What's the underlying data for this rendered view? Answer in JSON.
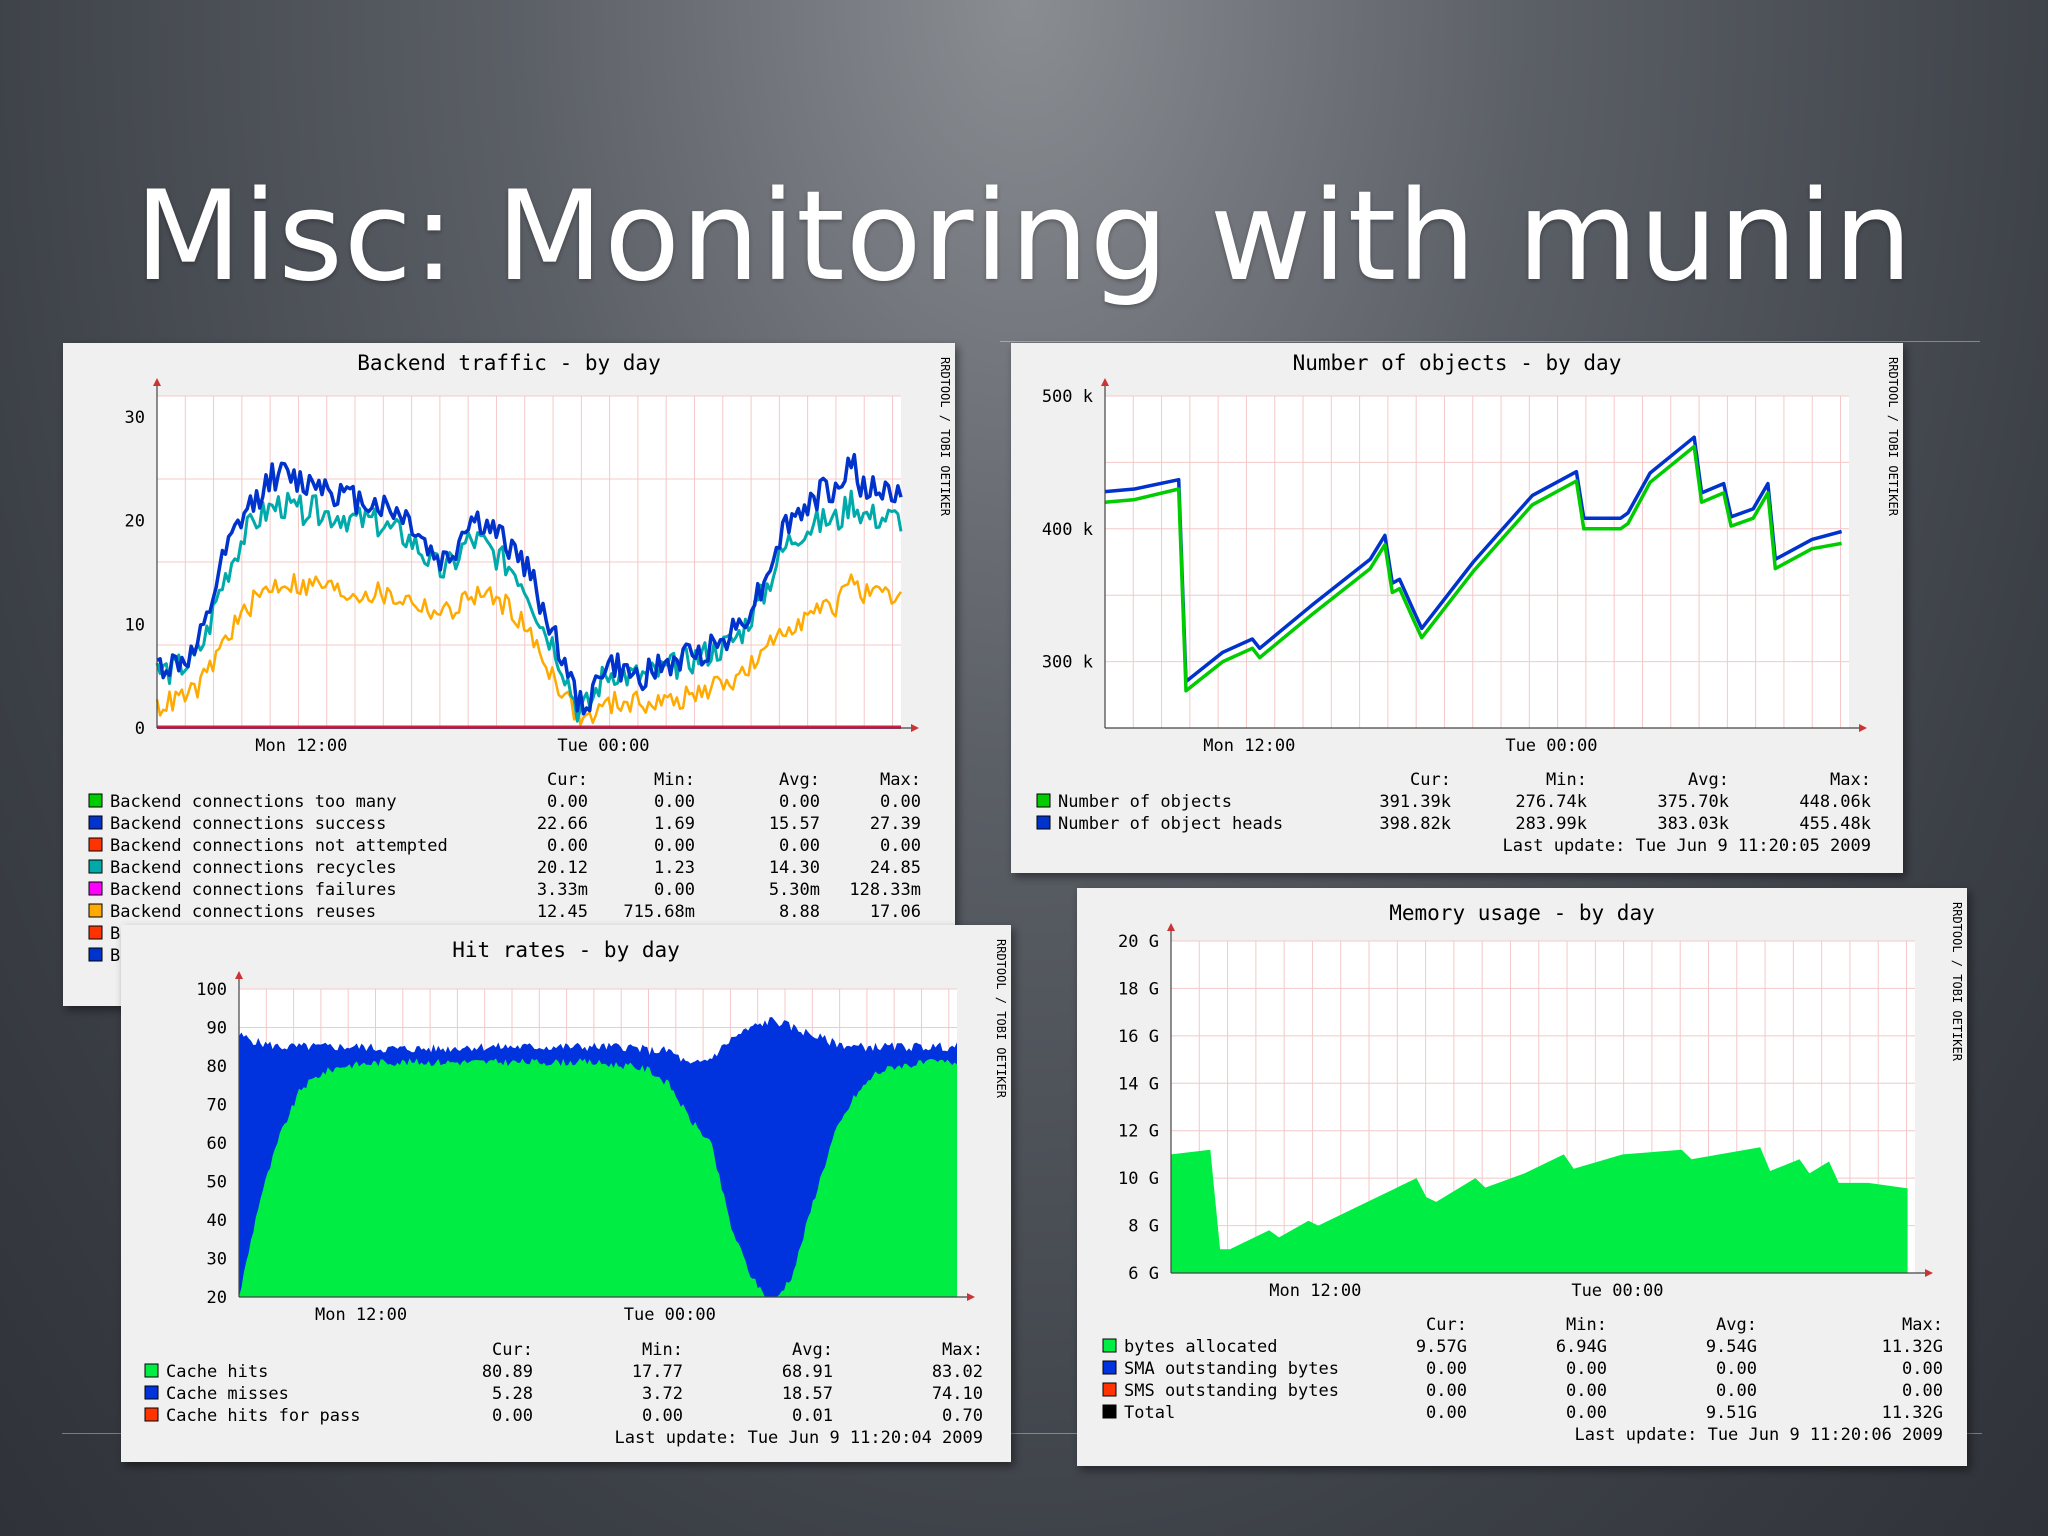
{
  "slide": {
    "title": "Misc: Monitoring with munin"
  },
  "watermark": "RRDTOOL / TOBI OETIKER",
  "chart_data": [
    {
      "id": "backend",
      "type": "line",
      "title": "Backend traffic - by day",
      "yticks": [
        "0",
        "10",
        "20",
        "30"
      ],
      "ylim": [
        0,
        32
      ],
      "x_tick_labels": [
        "Mon 12:00",
        "Tue 00:00"
      ],
      "legend_headers": [
        "Cur:",
        "Min:",
        "Avg:",
        "Max:"
      ],
      "series": [
        {
          "name": "Backend connections too many",
          "color": "#00cc00",
          "stats": [
            "0.00",
            "0.00",
            "0.00",
            "0.00"
          ],
          "values": [
            0,
            0,
            0,
            0,
            0,
            0,
            0,
            0,
            0,
            0,
            0,
            0,
            0,
            0,
            0,
            0,
            0,
            0,
            0,
            0,
            0,
            0,
            0,
            0,
            0,
            0,
            0,
            0,
            0,
            0,
            0,
            0,
            0,
            0,
            0,
            0,
            0,
            0,
            0,
            0,
            0,
            0,
            0,
            0,
            0,
            0,
            0,
            0,
            0,
            0,
            0,
            0,
            0,
            0,
            0,
            0,
            0,
            0,
            0,
            0,
            0
          ]
        },
        {
          "name": "Backend connections success",
          "color": "#0033cc",
          "stats": [
            "22.66",
            "1.69",
            "15.57",
            "27.39"
          ],
          "values": [
            6,
            6,
            6.5,
            7,
            10,
            15,
            18,
            20.5,
            22,
            24,
            24.5,
            24,
            23.5,
            24,
            23,
            22.5,
            22,
            22,
            21.5,
            21,
            20.5,
            19,
            17,
            16,
            17,
            20,
            20,
            19,
            18,
            17,
            15,
            12,
            9,
            6,
            2,
            3,
            6,
            6,
            5,
            5,
            5.5,
            6,
            6.5,
            7,
            7.5,
            8,
            9,
            10,
            12,
            14,
            18,
            20,
            21,
            22,
            23,
            23,
            26,
            22.8,
            23,
            22.7,
            22.66
          ]
        },
        {
          "name": "Backend connections not attempted",
          "color": "#ff3300",
          "stats": [
            "0.00",
            "0.00",
            "0.00",
            "0.00"
          ],
          "values": [
            0,
            0,
            0,
            0,
            0,
            0,
            0,
            0,
            0,
            0,
            0,
            0,
            0,
            0,
            0,
            0,
            0,
            0,
            0,
            0,
            0,
            0,
            0,
            0,
            0,
            0,
            0,
            0,
            0,
            0,
            0,
            0,
            0,
            0,
            0,
            0,
            0,
            0,
            0,
            0,
            0,
            0,
            0,
            0,
            0,
            0,
            0,
            0,
            0,
            0,
            0,
            0,
            0,
            0,
            0,
            0,
            0,
            0,
            0,
            0,
            0
          ]
        },
        {
          "name": "Backend connections recycles",
          "color": "#00aaaa",
          "stats": [
            "20.12",
            "1.23",
            "14.30",
            "24.85"
          ],
          "values": [
            5.5,
            5.5,
            6,
            6.5,
            9,
            13,
            16,
            18.5,
            20,
            21,
            21.5,
            21,
            21,
            21,
            20.5,
            20.5,
            20,
            20,
            19.5,
            19,
            18.5,
            17.5,
            16,
            15,
            16,
            18,
            18,
            17,
            16,
            15,
            13,
            10,
            8,
            5,
            1.5,
            2.5,
            5,
            5.5,
            5,
            5,
            5.2,
            5.5,
            6,
            6.5,
            7,
            7.5,
            8,
            9,
            11,
            13,
            16,
            18,
            19,
            19.5,
            20,
            20,
            22,
            20.5,
            20.3,
            20.2,
            20.12
          ]
        },
        {
          "name": "Backend connections failures",
          "color": "#ff00ff",
          "stats": [
            "3.33m",
            "0.00",
            "5.30m",
            "128.33m"
          ],
          "values": [
            0,
            0,
            0,
            0,
            0,
            0,
            0,
            0,
            0,
            0,
            0,
            0,
            0,
            0,
            0,
            0,
            0,
            0,
            0,
            0,
            0,
            0,
            0,
            0,
            0,
            0,
            0,
            0,
            0,
            0,
            0,
            0,
            0,
            0,
            0,
            0,
            0,
            0,
            0,
            0,
            0,
            0,
            0,
            0,
            0,
            0,
            0,
            0,
            0,
            0,
            0,
            0,
            0,
            0,
            0,
            0,
            0,
            0,
            0,
            0,
            0
          ]
        },
        {
          "name": "Backend connections reuses",
          "color": "#ffaa00",
          "stats": [
            "12.45",
            "715.68m",
            "8.88",
            "17.06"
          ],
          "values": [
            2,
            2.5,
            3,
            3.5,
            5,
            7.5,
            9.5,
            11,
            12.5,
            13.5,
            14,
            14,
            13.5,
            14,
            13.5,
            13,
            13,
            13,
            13,
            12.5,
            12.5,
            12,
            11.5,
            11,
            11.5,
            12.5,
            13,
            12.5,
            12,
            11,
            9,
            7,
            5,
            3,
            1,
            1,
            2,
            2.5,
            2.5,
            2.5,
            2.5,
            2.5,
            2.7,
            3,
            3.5,
            4,
            4.5,
            5,
            6,
            7,
            9,
            10,
            10.5,
            11,
            11.5,
            12,
            15,
            12.8,
            12.6,
            12.5,
            12.45
          ]
        }
      ],
      "hidden_legend_entries": [
        "B",
        "B"
      ]
    },
    {
      "id": "objects",
      "type": "line",
      "title": "Number of objects - by day",
      "yticks": [
        "300 k",
        "400 k",
        "500 k"
      ],
      "ylim": [
        250,
        500
      ],
      "x_tick_labels": [
        "Mon 12:00",
        "Tue 00:00"
      ],
      "legend_headers": [
        "Cur:",
        "Min:",
        "Avg:",
        "Max:"
      ],
      "series": [
        {
          "name": "Number of objects",
          "color": "#00cc00",
          "stats": [
            "391.39k",
            "276.74k",
            "375.70k",
            "448.06k"
          ],
          "x": [
            0,
            2,
            5,
            5.5,
            8,
            10,
            10.5,
            14,
            18,
            19,
            19.5,
            20,
            21,
            21.5,
            25,
            29,
            32,
            32.5,
            35,
            35.5,
            37,
            40,
            40.5,
            42,
            42.5,
            44,
            45,
            45.5,
            48,
            50
          ],
          "values": [
            420,
            422,
            430,
            278,
            300,
            310,
            303,
            335,
            370,
            388,
            352,
            355,
            330,
            318,
            368,
            418,
            436,
            400,
            400,
            404,
            435,
            462,
            420,
            427,
            402,
            408,
            427,
            370,
            385,
            389
          ]
        },
        {
          "name": "Number of object heads",
          "color": "#0033cc",
          "stats": [
            "398.82k",
            "283.99k",
            "383.03k",
            "455.48k"
          ],
          "x": [
            0,
            2,
            5,
            5.5,
            8,
            10,
            10.5,
            14,
            18,
            19,
            19.5,
            20,
            21,
            21.5,
            25,
            29,
            32,
            32.5,
            35,
            35.5,
            37,
            40,
            40.5,
            42,
            42.5,
            44,
            45,
            45.5,
            48,
            50
          ],
          "values": [
            428,
            430,
            437,
            285,
            307,
            317,
            310,
            342,
            377,
            395,
            359,
            362,
            337,
            325,
            375,
            425,
            443,
            408,
            408,
            412,
            442,
            469,
            427,
            434,
            409,
            415,
            434,
            377,
            392,
            398
          ]
        }
      ],
      "last_update": "Last update: Tue Jun  9 11:20:05 2009"
    },
    {
      "id": "hitrates",
      "type": "area",
      "title": "Hit rates - by day",
      "yticks": [
        "20",
        "30",
        "40",
        "50",
        "60",
        "70",
        "80",
        "90",
        "100"
      ],
      "ylim": [
        20,
        100
      ],
      "x_tick_labels": [
        "Mon 12:00",
        "Tue 00:00"
      ],
      "legend_headers": [
        "Cur:",
        "Min:",
        "Avg:",
        "Max:"
      ],
      "series": [
        {
          "name": "Cache hits",
          "color": "#00ee44",
          "stats": [
            "80.89",
            "17.77",
            "68.91",
            "83.02"
          ],
          "values": [
            20,
            45,
            62,
            74,
            78,
            80,
            80.5,
            81,
            81,
            81,
            81,
            81,
            81,
            81,
            81,
            81,
            81,
            81,
            80.5,
            80,
            79,
            75,
            66,
            60,
            38,
            25,
            18,
            26,
            45,
            62,
            72,
            78,
            80,
            80.5,
            81,
            81
          ]
        },
        {
          "name": "Cache misses",
          "color": "#0033dd",
          "stats": [
            "5.28",
            "3.72",
            "18.57",
            "74.10"
          ],
          "values": [
            88,
            86,
            85,
            85,
            85,
            85,
            85,
            84.5,
            84.5,
            84.5,
            84.5,
            85,
            85,
            85,
            85,
            85,
            85,
            85,
            85,
            85,
            84,
            84,
            80,
            82,
            87,
            90,
            92,
            90,
            88,
            86,
            85,
            85,
            85,
            85,
            85,
            85
          ]
        },
        {
          "name": "Cache hits for pass",
          "color": "#ff3300",
          "stats": [
            "0.00",
            "0.00",
            "0.01",
            "0.70"
          ]
        }
      ],
      "last_update": "Last update: Tue Jun  9 11:20:04 2009"
    },
    {
      "id": "memory",
      "type": "area",
      "title": "Memory usage - by day",
      "yticks": [
        "6 G",
        "8 G",
        "10 G",
        "12 G",
        "14 G",
        "16 G",
        "18 G",
        "20 G"
      ],
      "ylim": [
        6,
        20
      ],
      "x_tick_labels": [
        "Mon 12:00",
        "Tue 00:00"
      ],
      "legend_headers": [
        "Cur:",
        "Min:",
        "Avg:",
        "Max:"
      ],
      "series": [
        {
          "name": "bytes allocated",
          "color": "#00ee44",
          "stats": [
            "9.57G",
            "6.94G",
            "9.54G",
            "11.32G"
          ],
          "x": [
            0,
            4,
            5,
            6,
            10,
            11,
            14,
            15,
            20,
            25,
            26,
            27,
            31,
            32,
            36,
            40,
            41,
            46,
            52,
            53,
            60,
            61,
            64,
            65,
            67,
            68,
            70,
            71,
            75
          ],
          "values": [
            11,
            11.2,
            7,
            7,
            7.8,
            7.5,
            8.2,
            8,
            9,
            10,
            9.2,
            9,
            10,
            9.6,
            10.2,
            11,
            10.4,
            11,
            11.2,
            10.8,
            11.3,
            10.3,
            10.8,
            10.2,
            10.7,
            9.8,
            9.8,
            9.8,
            9.57
          ]
        },
        {
          "name": "SMA outstanding bytes",
          "color": "#0033dd",
          "stats": [
            "0.00",
            "0.00",
            "0.00",
            "0.00"
          ]
        },
        {
          "name": "SMS outstanding bytes",
          "color": "#ff3300",
          "stats": [
            "0.00",
            "0.00",
            "0.00",
            "0.00"
          ]
        },
        {
          "name": "Total",
          "color": "#000000",
          "stats": [
            "0.00",
            "0.00",
            "9.51G",
            "11.32G"
          ]
        }
      ],
      "last_update": "Last update: Tue Jun  9 11:20:06 2009"
    }
  ]
}
